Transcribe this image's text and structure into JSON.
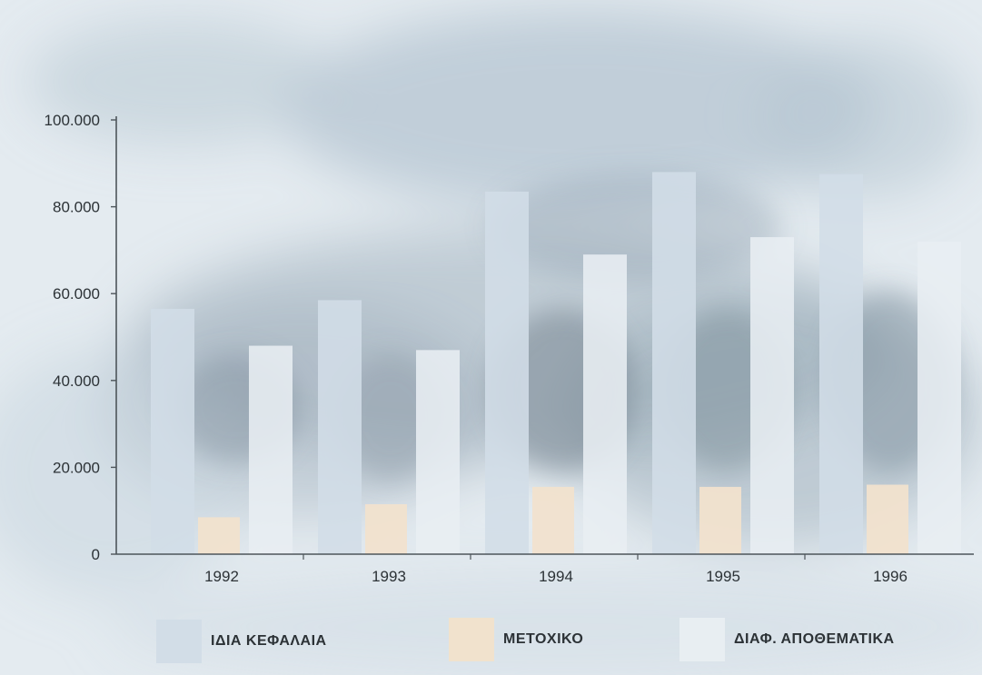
{
  "colors": {
    "own_funds": "#d2dde7",
    "share_capital": "#f1e2cd",
    "reserves": "#e8eef2",
    "axis": "#4d555a",
    "text": "#2c3236"
  },
  "chart_data": {
    "type": "bar",
    "title": "",
    "xlabel": "",
    "ylabel": "",
    "categories": [
      "1992",
      "1993",
      "1994",
      "1995",
      "1996"
    ],
    "ylim": [
      0,
      100000
    ],
    "yticks": [
      0,
      20000,
      40000,
      60000,
      80000,
      100000
    ],
    "ytick_labels": [
      "0",
      "20.000",
      "40.000",
      "60.000",
      "80.000",
      "100.000"
    ],
    "grid": false,
    "legend_position": "bottom",
    "series": [
      {
        "name": "ΙΔΙΑ ΚΕΦΑΛΑΙΑ",
        "color_key": "own_funds",
        "values": [
          56500,
          58500,
          83500,
          88000,
          87500
        ]
      },
      {
        "name": "ΜΕΤΟΧΙΚΟ",
        "color_key": "share_capital",
        "values": [
          8500,
          11500,
          15500,
          15500,
          16000
        ]
      },
      {
        "name": "ΔΙΑΦ. ΑΠΟΘΕΜΑΤΙΚΑ",
        "color_key": "reserves",
        "values": [
          48000,
          47000,
          69000,
          73000,
          72000
        ]
      }
    ]
  }
}
